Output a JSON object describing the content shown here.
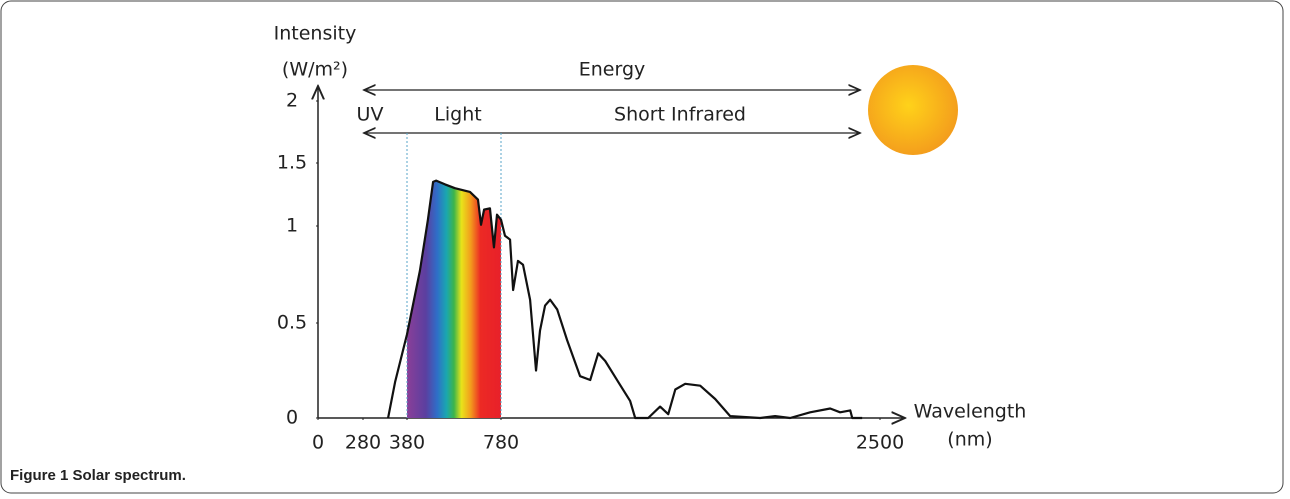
{
  "chart_data": {
    "type": "line",
    "caption": "Figure 1 Solar spectrum.",
    "y_label": "Intensity",
    "y_unit": "(W/m²)",
    "x_label": "Wavelength",
    "x_unit": "(nm)",
    "bands": {
      "energy": "Energy",
      "uv": "UV",
      "light": "Light",
      "infrared": "Short Infrared"
    },
    "x": [
      337,
      353,
      380,
      435,
      469,
      491,
      504,
      542,
      584,
      648,
      682,
      695,
      708,
      733,
      750,
      763,
      780,
      798,
      821,
      835,
      857,
      880,
      912,
      939,
      957,
      980,
      1003,
      1035,
      1080,
      1139,
      1185,
      1221,
      1253,
      1312,
      1366,
      1389,
      1448,
      1502,
      1539,
      1571,
      1616,
      1684,
      1752,
      1820,
      1956,
      2024,
      2092,
      2183,
      2274,
      2319,
      2365,
      2374,
      2419
    ],
    "values": [
      0,
      0.19,
      0.44,
      0.77,
      1.05,
      1.35,
      1.36,
      1.33,
      1.3,
      1.27,
      1.21,
      1.01,
      1.13,
      1.14,
      0.89,
      1.09,
      1.05,
      0.95,
      0.93,
      0.67,
      0.82,
      0.8,
      0.62,
      0.25,
      0.46,
      0.59,
      0.62,
      0.57,
      0.41,
      0.22,
      0.2,
      0.34,
      0.3,
      0.19,
      0.09,
      0,
      0,
      0.06,
      0.02,
      0.15,
      0.18,
      0.17,
      0.1,
      0.01,
      0,
      0.01,
      0,
      0.03,
      0.05,
      0.03,
      0.04,
      0,
      0
    ],
    "color": "#111111",
    "xlim": [
      0,
      2500
    ],
    "xticks": [
      0,
      280,
      380,
      780,
      2500
    ],
    "ylim": [
      0,
      2
    ],
    "yticks": [
      0,
      0.5,
      1,
      1.5,
      2
    ]
  }
}
